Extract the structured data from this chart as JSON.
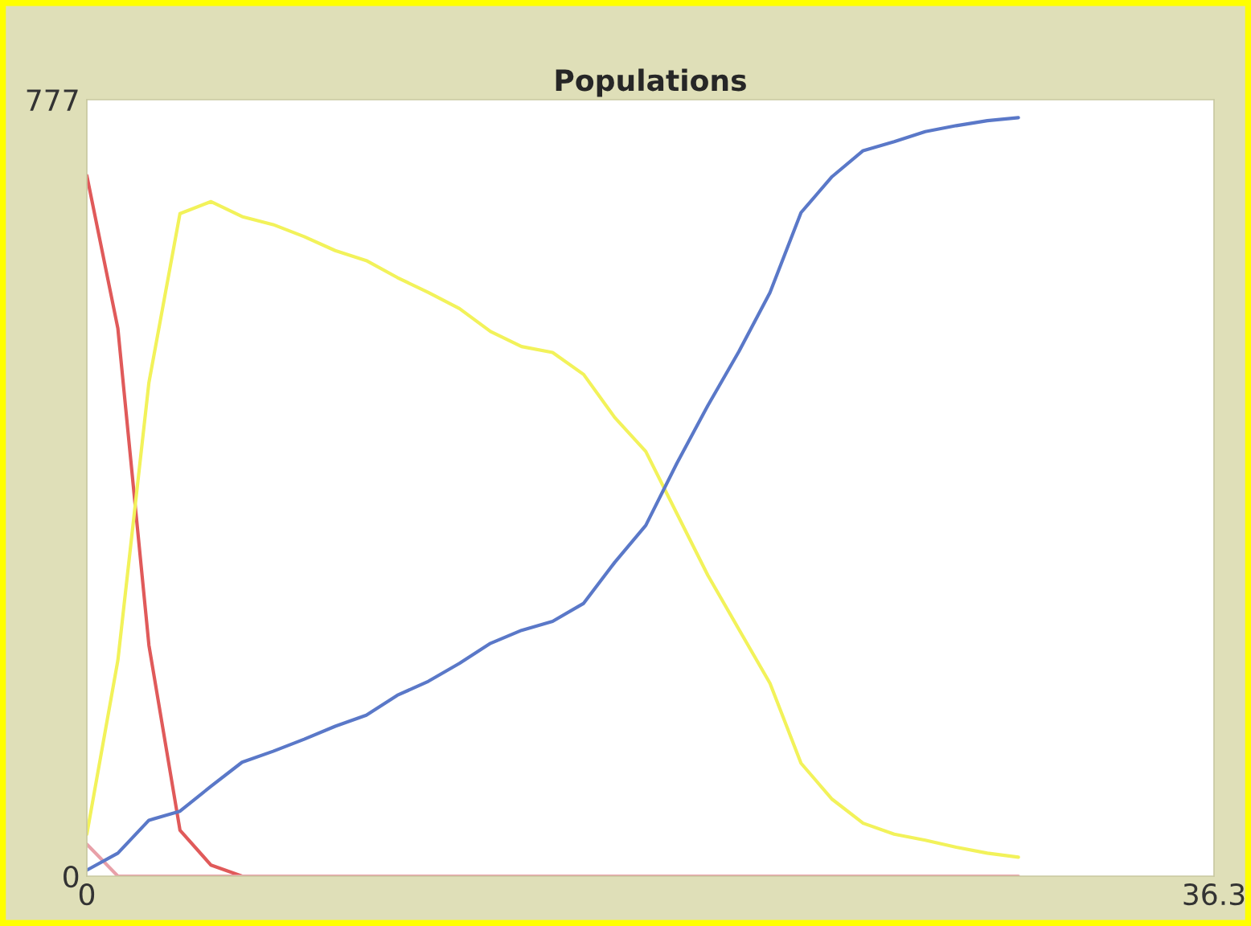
{
  "chart_data": {
    "type": "line",
    "title": "Populations",
    "x": [
      0,
      1,
      2,
      3,
      4,
      5,
      6,
      7,
      8,
      9,
      10,
      11,
      12,
      13,
      14,
      15,
      16,
      17,
      18,
      19,
      20,
      21,
      22,
      23,
      24,
      25,
      26,
      27,
      28,
      29,
      30
    ],
    "series": [
      {
        "color": "#e05a5a",
        "values": [
          701,
          548,
          231,
          46,
          11,
          0,
          null,
          null,
          null,
          null,
          null,
          null,
          null,
          null,
          null,
          null,
          null,
          null,
          null,
          null,
          null,
          null,
          null,
          null,
          null,
          null,
          null,
          null,
          null,
          null,
          null
        ]
      },
      {
        "color": "#e8a0a8",
        "values": [
          32,
          0,
          0,
          0,
          0,
          0,
          0,
          0,
          0,
          0,
          0,
          0,
          0,
          0,
          0,
          0,
          0,
          0,
          0,
          0,
          0,
          0,
          0,
          0,
          0,
          0,
          0,
          0,
          0,
          0,
          0
        ]
      },
      {
        "color": "#f2f25a",
        "values": [
          42,
          216,
          494,
          663,
          675,
          660,
          652,
          640,
          626,
          616,
          599,
          584,
          568,
          545,
          530,
          524,
          502,
          459,
          425,
          363,
          301,
          247,
          193,
          113,
          77,
          53,
          42,
          36,
          29,
          23,
          19
        ]
      },
      {
        "color": "#5a78c8",
        "values": [
          6,
          23,
          56,
          65,
          90,
          114,
          125,
          137,
          150,
          161,
          181,
          195,
          213,
          233,
          246,
          255,
          273,
          314,
          351,
          413,
          471,
          525,
          584,
          664,
          700,
          726,
          735,
          745,
          751,
          756,
          759
        ]
      }
    ],
    "xlim": [
      0,
      36.3
    ],
    "xticks": [
      0,
      36.3
    ],
    "ylim": [
      0,
      777
    ],
    "yticks": [
      0,
      777
    ],
    "grid": false,
    "legend": false,
    "marker": "none",
    "line_style": "solid"
  }
}
